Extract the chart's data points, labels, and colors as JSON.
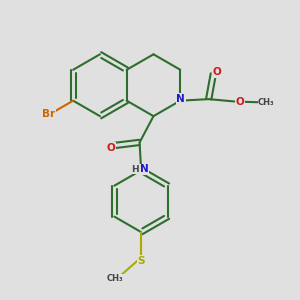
{
  "bg_color": "#e0e0e0",
  "bond_color": "#2d6e2d",
  "bond_width": 1.5,
  "n_color": "#1a1acc",
  "o_color": "#cc1a1a",
  "br_color": "#cc6600",
  "s_color": "#aaaa00",
  "h_color": "#444444",
  "text_size": 7.5,
  "figsize": [
    3.0,
    3.0
  ],
  "dpi": 100,
  "xlim": [
    0,
    10
  ],
  "ylim": [
    0,
    10
  ]
}
